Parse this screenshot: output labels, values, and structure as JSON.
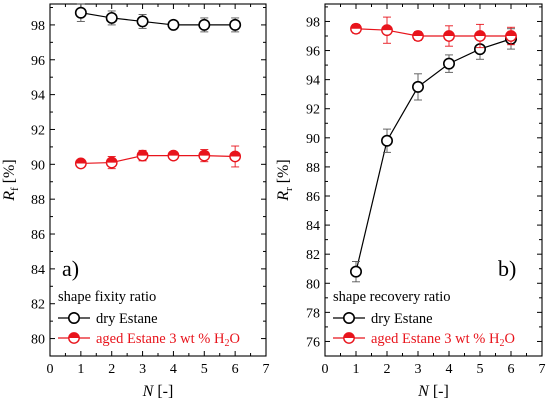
{
  "chart_data": [
    {
      "type": "line",
      "panel_label": "a)",
      "x": [
        1,
        2,
        3,
        4,
        5,
        6
      ],
      "xlim": [
        0,
        7
      ],
      "xticks": [
        0,
        1,
        2,
        3,
        4,
        5,
        6,
        7
      ],
      "ylim": [
        79,
        99.2
      ],
      "yticks": [
        80,
        82,
        84,
        86,
        88,
        90,
        92,
        94,
        96,
        98
      ],
      "xlabel": {
        "symbol": "N",
        "unit": " [-]"
      },
      "ylabel": {
        "symbol": "R",
        "subscript": "f",
        "unit": " [%]"
      },
      "legend": {
        "title": "shape fixity ratio",
        "position": "bottom-left"
      },
      "series": [
        {
          "name": "dry Estane",
          "color": "#000000",
          "marker": "open-circle",
          "values": [
            98.7,
            98.4,
            98.2,
            98.0,
            98.0,
            98.0
          ],
          "errors": [
            0.5,
            0.4,
            0.4,
            0.2,
            0.4,
            0.4
          ]
        },
        {
          "name": "aged Estane 3 wt % H",
          "name_sub": "2",
          "name_tail": "O",
          "color": "#e8141c",
          "marker": "half-filled-circle",
          "values": [
            90.05,
            90.1,
            90.5,
            90.5,
            90.5,
            90.45
          ],
          "errors": [
            0.2,
            0.35,
            0.3,
            0.2,
            0.35,
            0.6
          ]
        }
      ]
    },
    {
      "type": "line",
      "panel_label": "b)",
      "x": [
        1,
        2,
        3,
        4,
        5,
        6
      ],
      "xlim": [
        0,
        7
      ],
      "xticks": [
        0,
        1,
        2,
        3,
        4,
        5,
        6,
        7
      ],
      "ylim": [
        75,
        99.2
      ],
      "yticks": [
        76,
        78,
        80,
        82,
        84,
        86,
        88,
        90,
        92,
        94,
        96,
        98
      ],
      "xlabel": {
        "symbol": "N",
        "unit": " [-]"
      },
      "ylabel": {
        "symbol": "R",
        "subscript": "r",
        "unit": " [%]"
      },
      "legend": {
        "title": "shape recovery ratio",
        "position": "bottom-left"
      },
      "series": [
        {
          "name": "dry Estane",
          "color": "#000000",
          "marker": "open-circle",
          "values": [
            80.8,
            89.8,
            93.5,
            95.1,
            96.1,
            96.8
          ],
          "errors": [
            0.7,
            0.8,
            0.9,
            0.6,
            0.7,
            0.7
          ]
        },
        {
          "name": "aged Estane 3 wt % H",
          "name_sub": "2",
          "name_tail": "O",
          "color": "#e8141c",
          "marker": "half-filled-circle",
          "values": [
            97.5,
            97.4,
            97.0,
            97.0,
            97.0,
            97.0
          ],
          "errors": [
            0.3,
            0.9,
            0.3,
            0.7,
            0.8,
            0.6
          ]
        }
      ]
    }
  ]
}
